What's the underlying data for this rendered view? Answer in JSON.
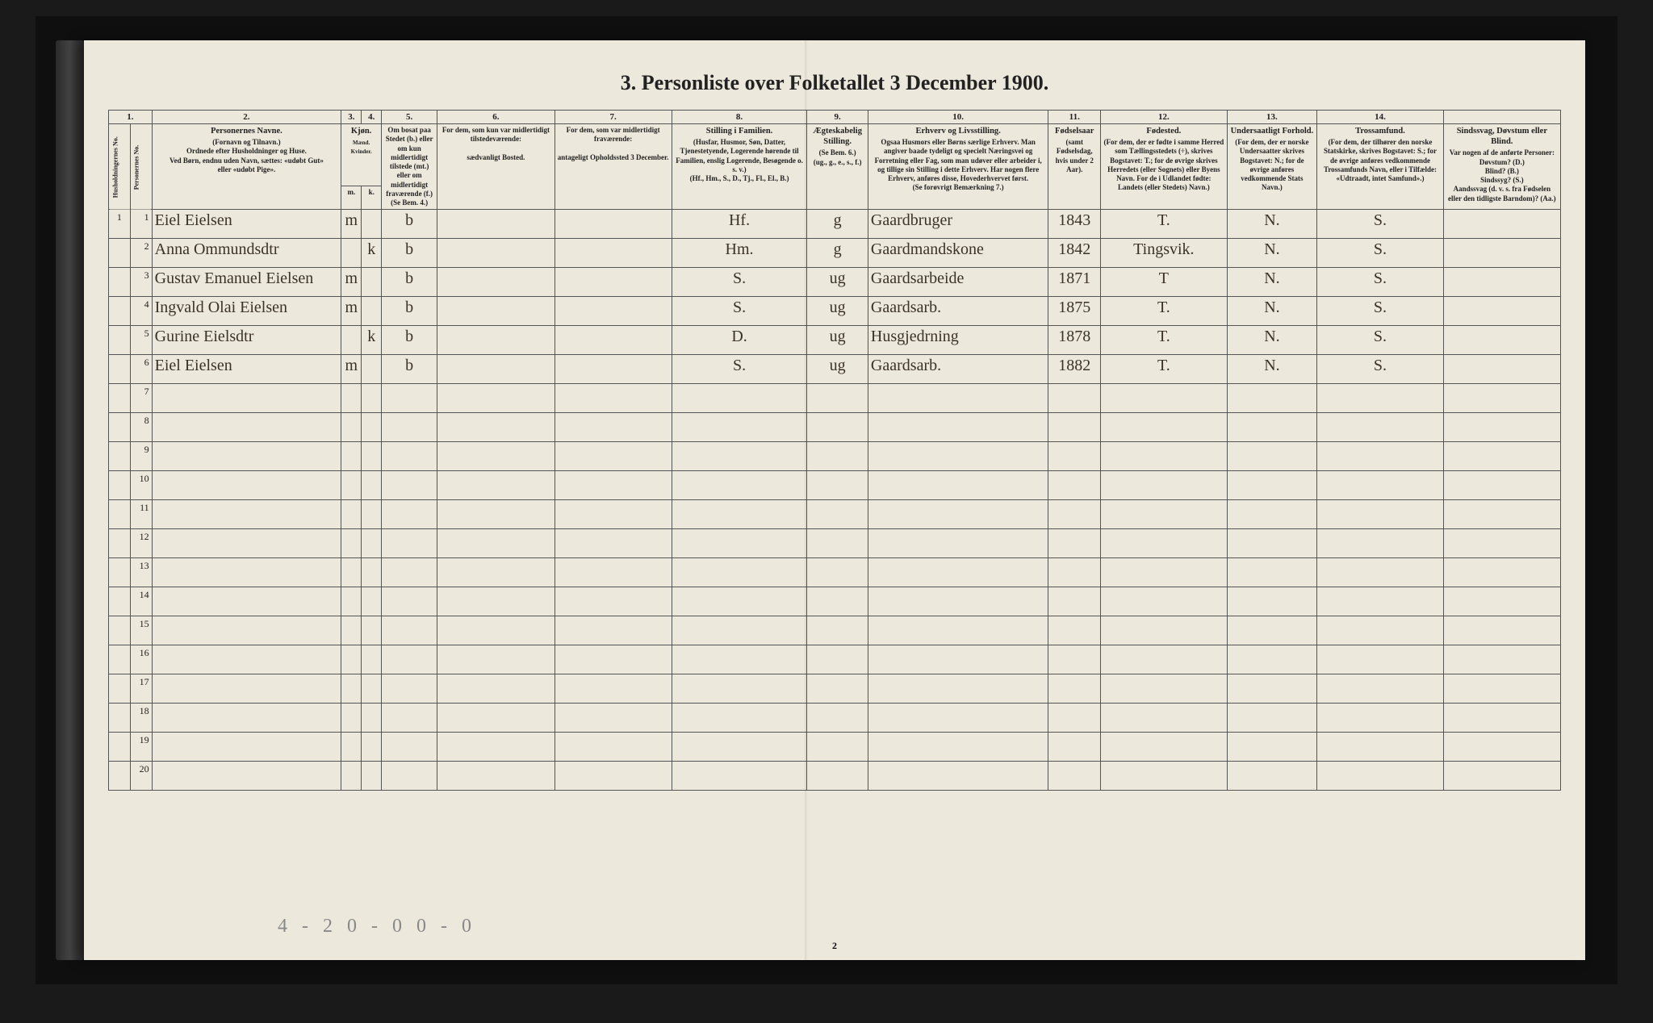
{
  "title": "3.  Personliste over Folketallet 3 December 1900.",
  "page_number": "2",
  "footer_pencil": "4 - 2   0 - 0    0 - 0",
  "colors": {
    "paper": "#ede8dc",
    "ink": "#222222",
    "handwriting": "#3a3228",
    "border": "#555555",
    "background": "#1a1a1a"
  },
  "column_numbers": [
    "1.",
    "2.",
    "3.",
    "4.",
    "5.",
    "6.",
    "7.",
    "8.",
    "9.",
    "10.",
    "11.",
    "12.",
    "13.",
    "14."
  ],
  "headers": {
    "c1a": "Husholdningernes No.",
    "c1b": "Personernes No.",
    "c2_title": "Personernes Navne.",
    "c2_body": "(Fornavn og Tilnavn.)\nOrdnede efter Husholdninger og Huse.\nVed Børn, endnu uden Navn, sættes: «udøbt Gut»\neller «udøbt Pige».",
    "c3_title": "Kjøn.",
    "c3_sub": "Mænd.  Kvinder.",
    "c3_m": "m.",
    "c3_k": "k.",
    "c4_title": "Om bosat paa Stedet (b.) eller om kun midlertidigt tilstede (mt.) eller om midlertidigt fraværende (f.)",
    "c4_foot": "(Se Bem. 4.)",
    "c5_title": "For dem, som kun var midlertidigt tilstedeværende:",
    "c5_body": "sædvanligt Bosted.",
    "c6_title": "For dem, som var midlertidigt fraværende:",
    "c6_body": "antageligt Opholdssted 3 December.",
    "c7_title": "Stilling i Familien.",
    "c7_body": "(Husfar, Husmor, Søn, Datter, Tjenestetyende, Logerende hørende til Familien, enslig Logerende, Besøgende o. s. v.)\n(Hf., Hm., S., D., Tj., Fl., El., B.)",
    "c8_title": "Ægteskabelig Stilling.",
    "c8_body": "(Se Bem. 6.)\n(ug., g., e., s., f.)",
    "c9_title": "Erhverv og Livsstilling.",
    "c9_body": "Ogsaa Husmors eller Børns særlige Erhverv. Man angiver baade tydeligt og specielt Næringsvei og Forretning eller Fag, som man udøver eller arbeider i, og tillige sin Stilling i dette Erhverv. Har nogen flere Erhverv, anføres disse, Hovederhvervet først.\n(Se forøvrigt Bemærkning 7.)",
    "c10_title": "Fødselsaar",
    "c10_body": "(samt Fødselsdag, hvis under 2 Aar).",
    "c11_title": "Fødested.",
    "c11_body": "(For dem, der er fødte i samme Herred som Tællingsstedets (÷), skrives Bogstavet: T.; for de øvrige skrives Herredets (eller Sognets) eller Byens Navn. For de i Udlandet fødte: Landets (eller Stedets) Navn.)",
    "c12_title": "Undersaatligt Forhold.",
    "c12_body": "(For dem, der er norske Undersaatter skrives Bogstavet: N.; for de øvrige anføres vedkommende Stats Navn.)",
    "c13_title": "Trossamfund.",
    "c13_body": "(For dem, der tilhører den norske Statskirke, skrives Bogstavet: S.; for de øvrige anføres vedkommende Trossamfunds Navn, eller i Tilfælde: «Udtraadt, intet Samfund».)",
    "c14_title": "Sindssvag, Døvstum eller Blind.",
    "c14_body": "Var nogen af de anførte Personer:\nDøvstum? (D.)\nBlind? (B.)\nSindssyg? (S.)\nAandssvag (d. v. s. fra Fødselen eller den tidligste Barndom)? (Aa.)"
  },
  "rows": [
    {
      "h": "1",
      "n": "1",
      "name": "Eiel Eielsen",
      "m": "m",
      "k": "",
      "res": "b",
      "temp": "",
      "abs": "",
      "fam": "Hf.",
      "mar": "g",
      "occ": "Gaardbruger",
      "year": "1843",
      "birth": "T.",
      "nat": "N.",
      "rel": "S.",
      "dis": ""
    },
    {
      "h": "",
      "n": "2",
      "name": "Anna Ommundsdtr",
      "m": "",
      "k": "k",
      "res": "b",
      "temp": "",
      "abs": "",
      "fam": "Hm.",
      "mar": "g",
      "occ": "Gaardmandskone",
      "year": "1842",
      "birth": "Tingsvik.",
      "nat": "N.",
      "rel": "S.",
      "dis": ""
    },
    {
      "h": "",
      "n": "3",
      "name": "Gustav Emanuel Eielsen",
      "m": "m",
      "k": "",
      "res": "b",
      "temp": "",
      "abs": "",
      "fam": "S.",
      "mar": "ug",
      "occ": "Gaardsarbeide",
      "year": "1871",
      "birth": "T",
      "nat": "N.",
      "rel": "S.",
      "dis": ""
    },
    {
      "h": "",
      "n": "4",
      "name": "Ingvald Olai Eielsen",
      "m": "m",
      "k": "",
      "res": "b",
      "temp": "",
      "abs": "",
      "fam": "S.",
      "mar": "ug",
      "occ": "Gaardsarb.",
      "year": "1875",
      "birth": "T.",
      "nat": "N.",
      "rel": "S.",
      "dis": ""
    },
    {
      "h": "",
      "n": "5",
      "name": "Gurine Eielsdtr",
      "m": "",
      "k": "k",
      "res": "b",
      "temp": "",
      "abs": "",
      "fam": "D.",
      "mar": "ug",
      "occ": "Husgjedrning",
      "year": "1878",
      "birth": "T.",
      "nat": "N.",
      "rel": "S.",
      "dis": ""
    },
    {
      "h": "",
      "n": "6",
      "name": "Eiel Eielsen",
      "m": "m",
      "k": "",
      "res": "b",
      "temp": "",
      "abs": "",
      "fam": "S.",
      "mar": "ug",
      "occ": "Gaardsarb.",
      "year": "1882",
      "birth": "T.",
      "nat": "N.",
      "rel": "S.",
      "dis": ""
    }
  ],
  "empty_rows": [
    7,
    8,
    9,
    10,
    11,
    12,
    13,
    14,
    15,
    16,
    17,
    18,
    19,
    20
  ]
}
